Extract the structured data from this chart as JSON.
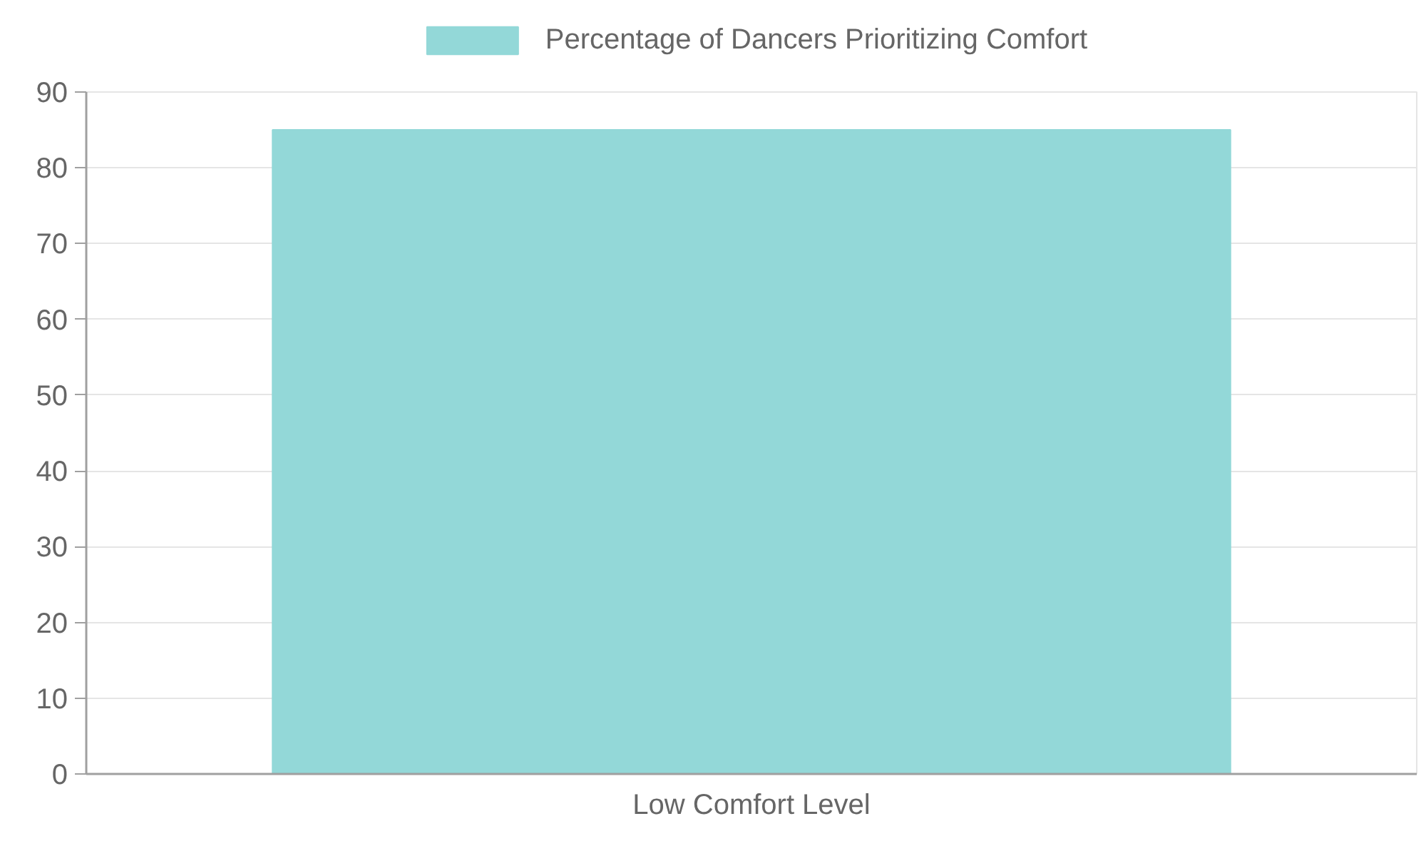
{
  "chart_data": {
    "type": "bar",
    "categories": [
      "Low Comfort Level"
    ],
    "series": [
      {
        "name": "Percentage of Dancers Prioritizing Comfort",
        "color": "#93d8d8",
        "values": [
          85
        ]
      }
    ],
    "ylim": [
      0,
      90
    ],
    "yticks": [
      0,
      10,
      20,
      30,
      40,
      50,
      60,
      70,
      80,
      90
    ],
    "grid": "y",
    "legend": "top"
  }
}
